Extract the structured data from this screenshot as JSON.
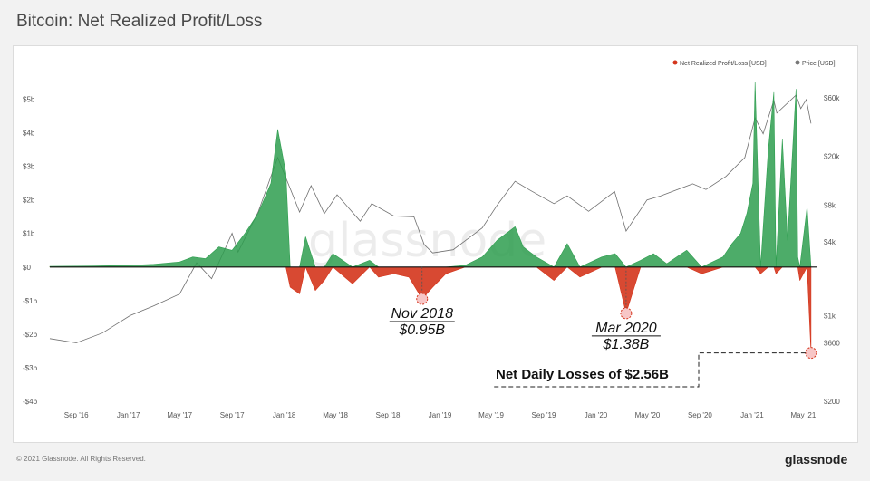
{
  "page": {
    "title": "Bitcoin: Net Realized Profit/Loss",
    "copyright": "© 2021 Glassnode. All Rights Reserved.",
    "brand": "glassnode",
    "watermark": "glassnode"
  },
  "legend": [
    {
      "label": "Net Realized Profit/Loss [USD]",
      "color": "#d4351c"
    },
    {
      "label": "Price [USD]",
      "color": "#777777"
    }
  ],
  "colors": {
    "profit": "#2e9e4f",
    "loss": "#d4351c",
    "price": "#6f6f6f",
    "zero": "#111111"
  },
  "chart_data": {
    "type": "line",
    "title": "Bitcoin: Net Realized Profit/Loss",
    "y_left": {
      "ticks": [
        "$5b",
        "$4b",
        "$3b",
        "$2b",
        "$1b",
        "$0",
        "-$1b",
        "-$2b",
        "-$3b",
        "-$4b"
      ],
      "tick_values": [
        5,
        4,
        3,
        2,
        1,
        0,
        -1,
        -2,
        -3,
        -4
      ],
      "range": [
        -4.0,
        5.5
      ],
      "unit": "USD billions"
    },
    "y_right": {
      "scale": "log",
      "ticks": [
        "$60k",
        "$20k",
        "$8k",
        "$4k",
        "$1k",
        "$600",
        "$200"
      ],
      "tick_values": [
        60000,
        20000,
        8000,
        4000,
        1000,
        600,
        200
      ],
      "range": [
        200,
        80000
      ]
    },
    "x": {
      "start": "2016-07-01",
      "end": "2021-06-01",
      "tick_labels": [
        "Sep '16",
        "Jan '17",
        "May '17",
        "Sep '17",
        "Jan '18",
        "May '18",
        "Sep '18",
        "Jan '19",
        "May '19",
        "Sep '19",
        "Jan '20",
        "May '20",
        "Sep '20",
        "Jan '21",
        "May '21"
      ],
      "tick_dates": [
        "2016-09-01",
        "2017-01-01",
        "2017-05-01",
        "2017-09-01",
        "2018-01-01",
        "2018-05-01",
        "2018-09-01",
        "2019-01-01",
        "2019-05-01",
        "2019-09-01",
        "2020-01-01",
        "2020-05-01",
        "2020-09-01",
        "2021-01-01",
        "2021-05-01"
      ]
    },
    "series": [
      {
        "name": "Net Realized Profit/Loss [USD]",
        "unit": "USD billions",
        "points": [
          [
            "2016-07-01",
            0.02
          ],
          [
            "2016-10-01",
            0.03
          ],
          [
            "2017-01-01",
            0.05
          ],
          [
            "2017-03-01",
            0.08
          ],
          [
            "2017-05-01",
            0.15
          ],
          [
            "2017-06-01",
            0.3
          ],
          [
            "2017-07-01",
            0.25
          ],
          [
            "2017-08-01",
            0.6
          ],
          [
            "2017-09-01",
            0.5
          ],
          [
            "2017-10-01",
            1.0
          ],
          [
            "2017-11-01",
            1.6
          ],
          [
            "2017-12-01",
            2.5
          ],
          [
            "2017-12-17",
            4.1
          ],
          [
            "2018-01-05",
            2.8
          ],
          [
            "2018-01-15",
            -0.6
          ],
          [
            "2018-02-06",
            -0.8
          ],
          [
            "2018-02-20",
            0.9
          ],
          [
            "2018-03-15",
            -0.7
          ],
          [
            "2018-04-05",
            -0.4
          ],
          [
            "2018-04-25",
            0.4
          ],
          [
            "2018-06-10",
            -0.5
          ],
          [
            "2018-07-20",
            0.2
          ],
          [
            "2018-08-10",
            -0.3
          ],
          [
            "2018-09-15",
            -0.2
          ],
          [
            "2018-10-20",
            -0.3
          ],
          [
            "2018-11-20",
            -0.95
          ],
          [
            "2018-12-15",
            -0.6
          ],
          [
            "2019-01-15",
            -0.2
          ],
          [
            "2019-03-01",
            0.05
          ],
          [
            "2019-04-10",
            0.3
          ],
          [
            "2019-05-15",
            0.8
          ],
          [
            "2019-06-26",
            1.2
          ],
          [
            "2019-07-15",
            0.6
          ],
          [
            "2019-08-15",
            0.3
          ],
          [
            "2019-09-25",
            -0.4
          ],
          [
            "2019-10-26",
            0.7
          ],
          [
            "2019-11-25",
            -0.3
          ],
          [
            "2020-01-15",
            0.3
          ],
          [
            "2020-02-15",
            0.4
          ],
          [
            "2020-03-12",
            -1.38
          ],
          [
            "2020-04-15",
            0.2
          ],
          [
            "2020-05-15",
            0.4
          ],
          [
            "2020-06-15",
            0.1
          ],
          [
            "2020-08-01",
            0.5
          ],
          [
            "2020-09-05",
            -0.2
          ],
          [
            "2020-10-25",
            0.3
          ],
          [
            "2020-11-15",
            0.7
          ],
          [
            "2020-12-05",
            1.0
          ],
          [
            "2020-12-20",
            1.6
          ],
          [
            "2021-01-03",
            2.5
          ],
          [
            "2021-01-08",
            5.5
          ],
          [
            "2021-01-21",
            -0.2
          ],
          [
            "2021-02-08",
            3.5
          ],
          [
            "2021-02-21",
            5.2
          ],
          [
            "2021-02-26",
            -0.2
          ],
          [
            "2021-03-13",
            3.8
          ],
          [
            "2021-03-25",
            0.8
          ],
          [
            "2021-04-14",
            5.3
          ],
          [
            "2021-04-18",
            0.3
          ],
          [
            "2021-04-23",
            -0.4
          ],
          [
            "2021-05-10",
            1.8
          ],
          [
            "2021-05-19",
            -2.56
          ]
        ]
      },
      {
        "name": "Price [USD]",
        "unit": "USD",
        "scale": "log",
        "points": [
          [
            "2016-07-01",
            650
          ],
          [
            "2016-09-01",
            600
          ],
          [
            "2016-11-01",
            720
          ],
          [
            "2017-01-05",
            1000
          ],
          [
            "2017-03-01",
            1200
          ],
          [
            "2017-05-01",
            1500
          ],
          [
            "2017-06-10",
            2700
          ],
          [
            "2017-07-15",
            2000
          ],
          [
            "2017-09-01",
            4700
          ],
          [
            "2017-09-15",
            3300
          ],
          [
            "2017-11-01",
            7000
          ],
          [
            "2017-12-17",
            19500
          ],
          [
            "2018-02-06",
            7000
          ],
          [
            "2018-03-05",
            11500
          ],
          [
            "2018-04-05",
            6800
          ],
          [
            "2018-05-05",
            9700
          ],
          [
            "2018-06-28",
            5900
          ],
          [
            "2018-07-25",
            8200
          ],
          [
            "2018-09-15",
            6500
          ],
          [
            "2018-11-01",
            6400
          ],
          [
            "2018-11-25",
            3800
          ],
          [
            "2018-12-15",
            3250
          ],
          [
            "2019-02-01",
            3450
          ],
          [
            "2019-04-10",
            5200
          ],
          [
            "2019-05-15",
            8000
          ],
          [
            "2019-06-26",
            12500
          ],
          [
            "2019-08-01",
            10500
          ],
          [
            "2019-09-25",
            8200
          ],
          [
            "2019-10-26",
            9500
          ],
          [
            "2019-12-15",
            7100
          ],
          [
            "2020-02-14",
            10300
          ],
          [
            "2020-03-12",
            4900
          ],
          [
            "2020-04-30",
            8800
          ],
          [
            "2020-06-01",
            9500
          ],
          [
            "2020-08-15",
            11900
          ],
          [
            "2020-09-15",
            10700
          ],
          [
            "2020-11-01",
            13700
          ],
          [
            "2020-12-15",
            19500
          ],
          [
            "2021-01-08",
            41000
          ],
          [
            "2021-01-27",
            30500
          ],
          [
            "2021-02-21",
            57000
          ],
          [
            "2021-02-28",
            45000
          ],
          [
            "2021-04-14",
            63000
          ],
          [
            "2021-04-25",
            49000
          ],
          [
            "2021-05-08",
            58000
          ],
          [
            "2021-05-19",
            37000
          ]
        ]
      }
    ],
    "annotations": [
      {
        "date": "2018-11-20",
        "value": -0.95,
        "label_line1": "Nov 2018",
        "label_line2": "$0.95B"
      },
      {
        "date": "2020-03-12",
        "value": -1.38,
        "label_line1": "Mar 2020",
        "label_line2": "$1.38B"
      },
      {
        "date": "2021-05-19",
        "value": -2.56,
        "label": "Net Daily Losses of $2.56B"
      }
    ],
    "legend_position": "top-right",
    "grid": false
  }
}
